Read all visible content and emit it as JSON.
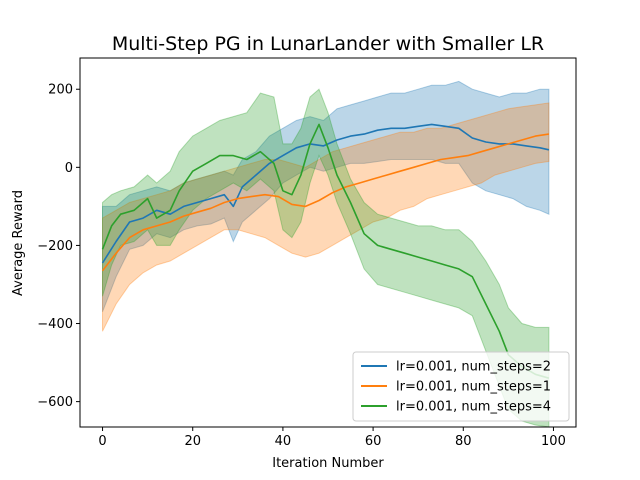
{
  "chart_data": {
    "type": "line",
    "title": "Multi-Step PG in LunarLander with Smaller LR",
    "xlabel": "Iteration Number",
    "ylabel": "Average Reward",
    "xlim": [
      -5,
      105
    ],
    "ylim": [
      -665,
      280
    ],
    "xticks": [
      0,
      20,
      40,
      60,
      80,
      100
    ],
    "yticks": [
      -600,
      -400,
      -200,
      0,
      200
    ],
    "grid": false,
    "legend_position": "lower-right",
    "series": [
      {
        "name": "lr=0.001, num_steps=2",
        "color": "#1f77b4",
        "band_opacity": 0.3,
        "points": [
          [
            0,
            -245,
            -370,
            -100
          ],
          [
            3,
            -190,
            -280,
            -100
          ],
          [
            6,
            -140,
            -210,
            -70
          ],
          [
            9,
            -130,
            -200,
            -60
          ],
          [
            12,
            -110,
            -170,
            -50
          ],
          [
            15,
            -120,
            -180,
            -60
          ],
          [
            18,
            -100,
            -160,
            -40
          ],
          [
            21,
            -90,
            -150,
            -30
          ],
          [
            24,
            -80,
            -145,
            -20
          ],
          [
            27,
            -70,
            -130,
            -10
          ],
          [
            29,
            -100,
            -190,
            -20
          ],
          [
            31,
            -50,
            -140,
            20
          ],
          [
            34,
            -20,
            -110,
            40
          ],
          [
            37,
            10,
            -80,
            80
          ],
          [
            40,
            30,
            -40,
            100
          ],
          [
            43,
            50,
            -20,
            120
          ],
          [
            46,
            60,
            0,
            130
          ],
          [
            49,
            55,
            -10,
            120
          ],
          [
            52,
            70,
            0,
            150
          ],
          [
            55,
            80,
            10,
            160
          ],
          [
            58,
            85,
            10,
            170
          ],
          [
            61,
            95,
            15,
            180
          ],
          [
            64,
            100,
            20,
            190
          ],
          [
            67,
            100,
            20,
            190
          ],
          [
            70,
            105,
            20,
            200
          ],
          [
            73,
            110,
            20,
            210
          ],
          [
            76,
            105,
            10,
            210
          ],
          [
            79,
            100,
            10,
            220
          ],
          [
            82,
            75,
            -40,
            200
          ],
          [
            85,
            65,
            -60,
            190
          ],
          [
            88,
            60,
            -70,
            180
          ],
          [
            91,
            60,
            -80,
            190
          ],
          [
            94,
            55,
            -100,
            190
          ],
          [
            97,
            50,
            -110,
            200
          ],
          [
            99,
            45,
            -120,
            200
          ]
        ]
      },
      {
        "name": "lr=0.001, num_steps=1",
        "color": "#ff7f0e",
        "band_opacity": 0.3,
        "points": [
          [
            0,
            -265,
            -420,
            -130
          ],
          [
            3,
            -220,
            -350,
            -110
          ],
          [
            6,
            -180,
            -300,
            -90
          ],
          [
            9,
            -160,
            -270,
            -80
          ],
          [
            12,
            -150,
            -250,
            -70
          ],
          [
            15,
            -140,
            -240,
            -60
          ],
          [
            18,
            -125,
            -220,
            -40
          ],
          [
            21,
            -115,
            -200,
            -30
          ],
          [
            24,
            -105,
            -180,
            -20
          ],
          [
            27,
            -90,
            -160,
            -10
          ],
          [
            30,
            -80,
            -160,
            0
          ],
          [
            33,
            -75,
            -170,
            10
          ],
          [
            36,
            -70,
            -180,
            20
          ],
          [
            39,
            -75,
            -200,
            20
          ],
          [
            42,
            -95,
            -220,
            10
          ],
          [
            45,
            -100,
            -230,
            0
          ],
          [
            48,
            -85,
            -220,
            20
          ],
          [
            51,
            -65,
            -200,
            40
          ],
          [
            54,
            -50,
            -180,
            50
          ],
          [
            57,
            -40,
            -160,
            60
          ],
          [
            60,
            -30,
            -140,
            70
          ],
          [
            63,
            -20,
            -130,
            80
          ],
          [
            66,
            -10,
            -110,
            90
          ],
          [
            69,
            0,
            -100,
            90
          ],
          [
            72,
            10,
            -80,
            100
          ],
          [
            75,
            20,
            -70,
            100
          ],
          [
            78,
            25,
            -60,
            110
          ],
          [
            81,
            30,
            -50,
            120
          ],
          [
            84,
            40,
            -40,
            130
          ],
          [
            87,
            50,
            -20,
            140
          ],
          [
            90,
            60,
            -10,
            150
          ],
          [
            93,
            70,
            0,
            155
          ],
          [
            96,
            80,
            10,
            160
          ],
          [
            99,
            85,
            15,
            165
          ]
        ]
      },
      {
        "name": "lr=0.001, num_steps=4",
        "color": "#2ca02c",
        "band_opacity": 0.3,
        "points": [
          [
            0,
            -210,
            -330,
            -90
          ],
          [
            2,
            -150,
            -250,
            -70
          ],
          [
            4,
            -120,
            -200,
            -60
          ],
          [
            7,
            -110,
            -190,
            -50
          ],
          [
            10,
            -80,
            -160,
            -20
          ],
          [
            12,
            -130,
            -200,
            -40
          ],
          [
            15,
            -110,
            -200,
            -10
          ],
          [
            17,
            -60,
            -160,
            40
          ],
          [
            20,
            -10,
            -110,
            80
          ],
          [
            23,
            10,
            -80,
            100
          ],
          [
            26,
            30,
            -60,
            120
          ],
          [
            29,
            30,
            -40,
            130
          ],
          [
            32,
            20,
            -60,
            140
          ],
          [
            35,
            40,
            -30,
            190
          ],
          [
            38,
            10,
            -60,
            180
          ],
          [
            40,
            -60,
            -160,
            60
          ],
          [
            42,
            -70,
            -180,
            60
          ],
          [
            44,
            -20,
            -140,
            100
          ],
          [
            46,
            60,
            -40,
            180
          ],
          [
            48,
            110,
            30,
            200
          ],
          [
            50,
            50,
            -20,
            140
          ],
          [
            52,
            -20,
            -90,
            60
          ],
          [
            55,
            -90,
            -170,
            -30
          ],
          [
            58,
            -170,
            -260,
            -90
          ],
          [
            61,
            -200,
            -300,
            -120
          ],
          [
            64,
            -210,
            -310,
            -130
          ],
          [
            67,
            -220,
            -320,
            -140
          ],
          [
            70,
            -230,
            -330,
            -150
          ],
          [
            73,
            -240,
            -340,
            -150
          ],
          [
            76,
            -250,
            -350,
            -160
          ],
          [
            79,
            -260,
            -360,
            -160
          ],
          [
            82,
            -280,
            -380,
            -190
          ],
          [
            85,
            -350,
            -470,
            -240
          ],
          [
            88,
            -420,
            -560,
            -300
          ],
          [
            90,
            -480,
            -620,
            -360
          ],
          [
            93,
            -510,
            -650,
            -400
          ],
          [
            96,
            -530,
            -660,
            -410
          ],
          [
            99,
            -540,
            -665,
            -410
          ]
        ]
      }
    ]
  }
}
